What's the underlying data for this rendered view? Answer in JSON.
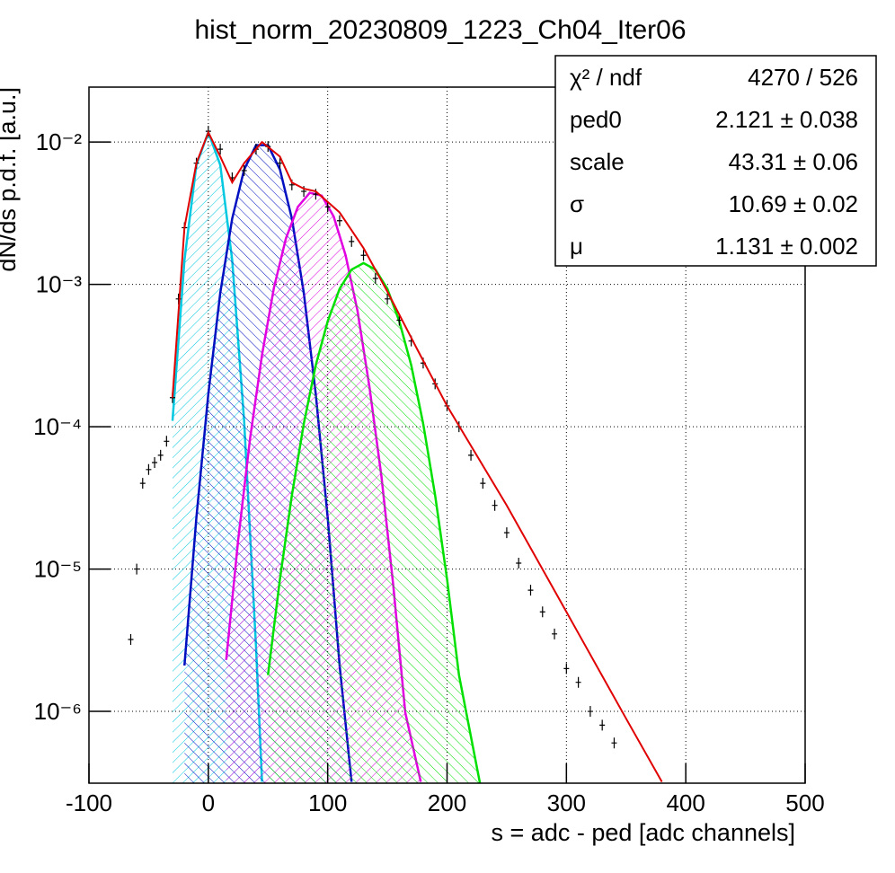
{
  "chart_data": {
    "type": "line",
    "title": "hist_norm_20230809_1223_Ch04_Iter06",
    "x_label": "s = adc - ped [adc channels]",
    "y_label": "dN/ds p.d.f. [a.u.]",
    "log_y": true,
    "grid": true,
    "xlim": [
      -100,
      500
    ],
    "ylim": [
      3.13e-07,
      0.0243
    ],
    "xticks": [
      -100,
      0,
      100,
      200,
      300,
      400,
      500
    ],
    "yticks": [
      {
        "value": 1e-06,
        "label": "10⁻⁶"
      },
      {
        "value": 1e-05,
        "label": "10⁻⁵"
      },
      {
        "value": 0.0001,
        "label": "10⁻⁴"
      },
      {
        "value": 0.001,
        "label": "10⁻³"
      },
      {
        "value": 0.01,
        "label": "10⁻²"
      }
    ],
    "stats": [
      [
        "χ² / ndf",
        "4270 / 526"
      ],
      [
        "ped0",
        "2.121 ± 0.038"
      ],
      [
        "scale",
        "43.31 ± 0.06"
      ],
      [
        "σ",
        "10.69 ± 0.02"
      ],
      [
        "μ",
        "1.131 ± 0.002"
      ]
    ],
    "series": [
      {
        "kind": "hatched",
        "color": "#00c8e0",
        "x": [
          -30,
          -20,
          -10,
          0,
          10,
          20,
          30,
          40,
          45
        ],
        "values": [
          0.00011,
          0.00148,
          0.0069,
          0.0117,
          0.0069,
          0.00148,
          0.00011,
          2.8e-06,
          3.2e-07
        ]
      },
      {
        "kind": "hatched",
        "color": "#0010c0",
        "x": [
          -20,
          -10,
          0,
          10,
          20,
          30,
          40,
          50,
          60,
          70,
          80,
          90,
          100,
          110,
          120
        ],
        "values": [
          2.1e-06,
          2.3e-05,
          0.00017,
          0.00087,
          0.0029,
          0.0064,
          0.0095,
          0.0095,
          0.0064,
          0.0029,
          0.00087,
          0.00017,
          2.3e-05,
          2.1e-06,
          3.2e-07
        ]
      },
      {
        "kind": "hatched",
        "color": "#e000e0",
        "x": [
          15,
          25,
          35,
          45,
          55,
          65,
          75,
          85,
          95,
          105,
          115,
          125,
          135,
          145,
          155,
          165,
          178
        ],
        "values": [
          2.3e-06,
          1.6e-05,
          8.3e-05,
          0.00032,
          0.00095,
          0.0021,
          0.0035,
          0.0044,
          0.0042,
          0.003,
          0.0016,
          0.00065,
          0.00019,
          4.5e-05,
          7.6e-06,
          9.8e-07,
          3.2e-07
        ]
      },
      {
        "kind": "hatched",
        "color": "#00e000",
        "x": [
          50,
          60,
          70,
          80,
          90,
          100,
          110,
          120,
          130,
          140,
          150,
          160,
          170,
          180,
          190,
          200,
          210,
          228
        ],
        "values": [
          1.8e-06,
          8.5e-06,
          3.3e-05,
          0.000105,
          0.00027,
          0.00055,
          0.00093,
          0.00127,
          0.00141,
          0.00127,
          0.00093,
          0.00055,
          0.00027,
          0.000105,
          3.3e-05,
          8.5e-06,
          1.8e-06,
          3e-07
        ]
      },
      {
        "kind": "points",
        "color": "#000000",
        "x": [
          -65,
          -60,
          -55,
          -50,
          -45,
          -40,
          -35,
          -30,
          -25,
          -20,
          -10,
          0,
          10,
          20,
          30,
          40,
          50,
          60,
          70,
          80,
          90,
          100,
          110,
          120,
          130,
          140,
          150,
          160,
          170,
          180,
          190,
          200,
          210,
          220,
          230,
          240,
          250,
          260,
          270,
          280,
          290,
          300,
          310,
          320,
          330,
          340
        ],
        "values": [
          3.2e-06,
          1e-05,
          4e-05,
          5e-05,
          5.6e-05,
          6.3e-05,
          7.9e-05,
          0.00016,
          0.00079,
          0.0025,
          0.0071,
          0.0119,
          0.0089,
          0.0056,
          0.0063,
          0.0089,
          0.0093,
          0.0071,
          0.005,
          0.0045,
          0.0043,
          0.0035,
          0.0028,
          0.002,
          0.0016,
          0.0011,
          0.00079,
          0.00056,
          0.0004,
          0.00028,
          0.0002,
          0.00014,
          0.0001,
          6.3e-05,
          4e-05,
          2.8e-05,
          1.8e-05,
          1.1e-05,
          7.1e-06,
          5e-06,
          3.5e-06,
          2e-06,
          1.6e-06,
          1e-06,
          8e-07,
          6e-07
        ]
      },
      {
        "kind": "line",
        "color": "#e00000",
        "x": [
          -30,
          -20,
          -10,
          0,
          10,
          20,
          30,
          45,
          60,
          70,
          80,
          90,
          100,
          110,
          130,
          150,
          175,
          200,
          250,
          300,
          350,
          380
        ],
        "values": [
          0.00016,
          0.0025,
          0.0071,
          0.0117,
          0.0079,
          0.0052,
          0.0071,
          0.01,
          0.0079,
          0.0052,
          0.0047,
          0.0045,
          0.0038,
          0.0032,
          0.0018,
          0.00089,
          0.00035,
          0.00014,
          2.8e-05,
          5e-06,
          8.9e-07,
          3.2e-07
        ]
      }
    ]
  }
}
